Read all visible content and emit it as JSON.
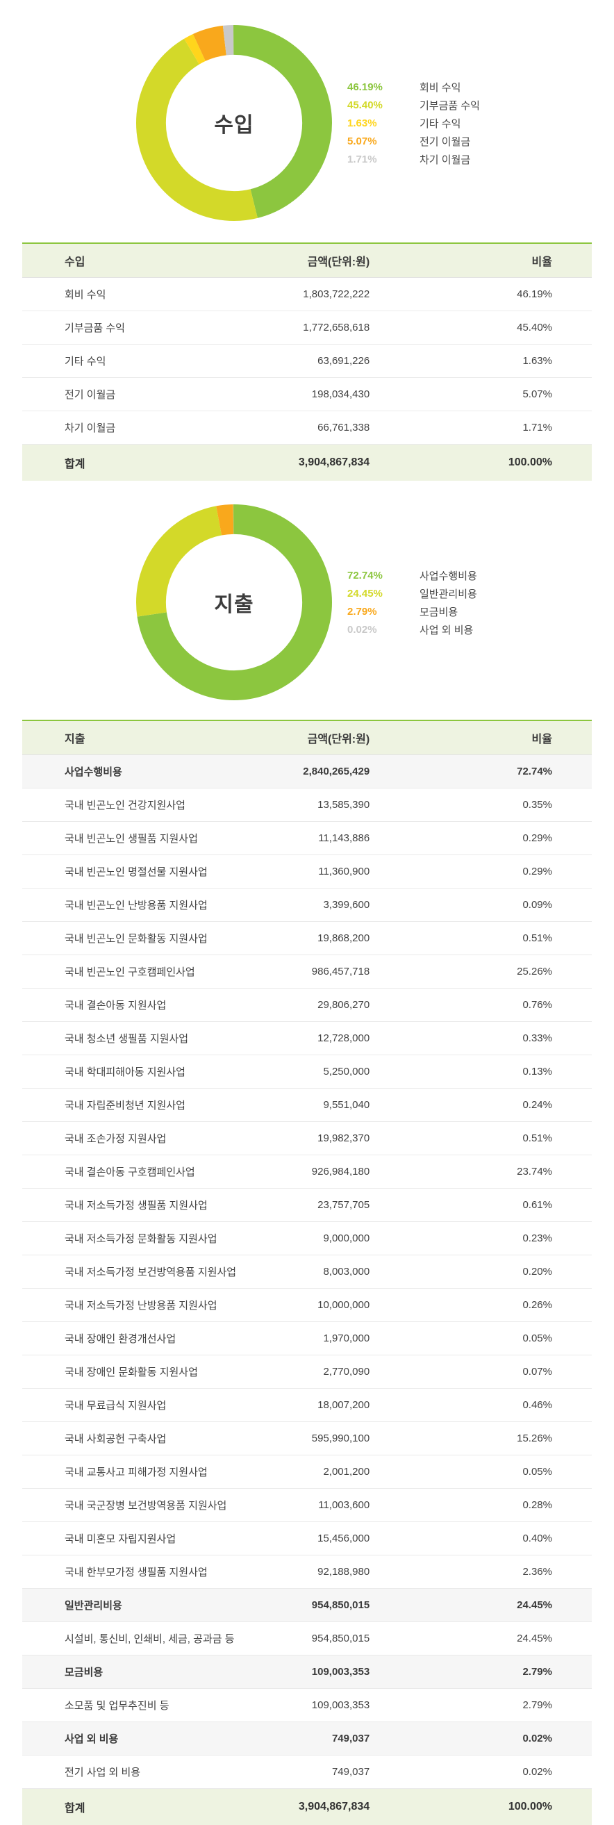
{
  "colors": {
    "green": "#8cc63f",
    "yellow_green": "#d3d929",
    "yellow": "#ffd51c",
    "orange": "#f9a81c",
    "gray": "#c9c9c9",
    "header_bg": "#eef3e1",
    "subtotal_bg": "#f6f6f6",
    "total_bg": "#eef3e1",
    "divider": "#eaeaea",
    "border_top": "#8cc63f"
  },
  "income_chart": {
    "center_label": "수입",
    "legend": [
      {
        "pct": "46.19%",
        "label": "회비 수익",
        "color": "#8cc63f"
      },
      {
        "pct": "45.40%",
        "label": "기부금품 수익",
        "color": "#d3d929"
      },
      {
        "pct": "1.63%",
        "label": "기타 수익",
        "color": "#ffd51c"
      },
      {
        "pct": "5.07%",
        "label": "전기 이월금",
        "color": "#f9a81c"
      },
      {
        "pct": "1.71%",
        "label": "차기 이월금",
        "color": "#c9c9c9"
      }
    ]
  },
  "income_table": {
    "headers": [
      "수입",
      "금액(단위:원)",
      "비율"
    ],
    "rows": [
      {
        "name": "회비 수익",
        "amount": "1,803,722,222",
        "ratio": "46.19%",
        "style": "item"
      },
      {
        "name": "기부금품 수익",
        "amount": "1,772,658,618",
        "ratio": "45.40%",
        "style": "item"
      },
      {
        "name": "기타 수익",
        "amount": "63,691,226",
        "ratio": "1.63%",
        "style": "item"
      },
      {
        "name": "전기 이월금",
        "amount": "198,034,430",
        "ratio": "5.07%",
        "style": "item"
      },
      {
        "name": "차기 이월금",
        "amount": "66,761,338",
        "ratio": "1.71%",
        "style": "item"
      }
    ],
    "total": {
      "name": "합계",
      "amount": "3,904,867,834",
      "ratio": "100.00%"
    }
  },
  "expense_chart": {
    "center_label": "지출",
    "legend": [
      {
        "pct": "72.74%",
        "label": "사업수행비용",
        "color": "#8cc63f"
      },
      {
        "pct": "24.45%",
        "label": "일반관리비용",
        "color": "#d3d929"
      },
      {
        "pct": "2.79%",
        "label": "모금비용",
        "color": "#f9a81c"
      },
      {
        "pct": "0.02%",
        "label": "사업 외 비용",
        "color": "#c9c9c9"
      }
    ]
  },
  "expense_table": {
    "headers": [
      "지출",
      "금액(단위:원)",
      "비율"
    ],
    "rows": [
      {
        "name": "사업수행비용",
        "amount": "2,840,265,429",
        "ratio": "72.74%",
        "style": "subtotal"
      },
      {
        "name": "국내 빈곤노인 건강지원사업",
        "amount": "13,585,390",
        "ratio": "0.35%",
        "style": "item"
      },
      {
        "name": "국내 빈곤노인 생필품 지원사업",
        "amount": "11,143,886",
        "ratio": "0.29%",
        "style": "item"
      },
      {
        "name": "국내 빈곤노인 명절선물 지원사업",
        "amount": "11,360,900",
        "ratio": "0.29%",
        "style": "item"
      },
      {
        "name": "국내 빈곤노인 난방용품 지원사업",
        "amount": "3,399,600",
        "ratio": "0.09%",
        "style": "item"
      },
      {
        "name": "국내 빈곤노인 문화활동 지원사업",
        "amount": "19,868,200",
        "ratio": "0.51%",
        "style": "item"
      },
      {
        "name": "국내 빈곤노인 구호캠페인사업",
        "amount": "986,457,718",
        "ratio": "25.26%",
        "style": "item"
      },
      {
        "name": "국내 결손아동 지원사업",
        "amount": "29,806,270",
        "ratio": "0.76%",
        "style": "item"
      },
      {
        "name": "국내 청소년 생필품 지원사업",
        "amount": "12,728,000",
        "ratio": "0.33%",
        "style": "item"
      },
      {
        "name": "국내 학대피해아동 지원사업",
        "amount": "5,250,000",
        "ratio": "0.13%",
        "style": "item"
      },
      {
        "name": "국내 자립준비청년 지원사업",
        "amount": "9,551,040",
        "ratio": "0.24%",
        "style": "item"
      },
      {
        "name": "국내 조손가정 지원사업",
        "amount": "19,982,370",
        "ratio": "0.51%",
        "style": "item"
      },
      {
        "name": "국내 결손아동 구호캠페인사업",
        "amount": "926,984,180",
        "ratio": "23.74%",
        "style": "item"
      },
      {
        "name": "국내 저소득가정 생필품 지원사업",
        "amount": "23,757,705",
        "ratio": "0.61%",
        "style": "item"
      },
      {
        "name": "국내 저소득가정 문화활동 지원사업",
        "amount": "9,000,000",
        "ratio": "0.23%",
        "style": "item"
      },
      {
        "name": "국내 저소득가정 보건방역용품 지원사업",
        "amount": "8,003,000",
        "ratio": "0.20%",
        "style": "item"
      },
      {
        "name": "국내 저소득가정 난방용품 지원사업",
        "amount": "10,000,000",
        "ratio": "0.26%",
        "style": "item"
      },
      {
        "name": "국내 장애인 환경개선사업",
        "amount": "1,970,000",
        "ratio": "0.05%",
        "style": "item"
      },
      {
        "name": "국내 장애인 문화활동 지원사업",
        "amount": "2,770,090",
        "ratio": "0.07%",
        "style": "item"
      },
      {
        "name": "국내 무료급식 지원사업",
        "amount": "18,007,200",
        "ratio": "0.46%",
        "style": "item"
      },
      {
        "name": "국내 사회공헌 구축사업",
        "amount": "595,990,100",
        "ratio": "15.26%",
        "style": "item"
      },
      {
        "name": "국내 교통사고 피해가정 지원사업",
        "amount": "2,001,200",
        "ratio": "0.05%",
        "style": "item"
      },
      {
        "name": "국내 국군장병 보건방역용품 지원사업",
        "amount": "11,003,600",
        "ratio": "0.28%",
        "style": "item"
      },
      {
        "name": "국내 미혼모 자립지원사업",
        "amount": "15,456,000",
        "ratio": "0.40%",
        "style": "item"
      },
      {
        "name": "국내 한부모가정 생필품 지원사업",
        "amount": "92,188,980",
        "ratio": "2.36%",
        "style": "item"
      },
      {
        "name": "일반관리비용",
        "amount": "954,850,015",
        "ratio": "24.45%",
        "style": "subtotal"
      },
      {
        "name": "시설비, 통신비, 인쇄비, 세금, 공과금 등",
        "amount": "954,850,015",
        "ratio": "24.45%",
        "style": "item"
      },
      {
        "name": "모금비용",
        "amount": "109,003,353",
        "ratio": "2.79%",
        "style": "subtotal"
      },
      {
        "name": "소모품 및 업무추진비 등",
        "amount": "109,003,353",
        "ratio": "2.79%",
        "style": "item"
      },
      {
        "name": "사업 외 비용",
        "amount": "749,037",
        "ratio": "0.02%",
        "style": "subtotal"
      },
      {
        "name": "전기 사업 외 비용",
        "amount": "749,037",
        "ratio": "0.02%",
        "style": "item"
      }
    ],
    "total": {
      "name": "합계",
      "amount": "3,904,867,834",
      "ratio": "100.00%"
    }
  },
  "chart_data": [
    {
      "type": "pie",
      "donut": true,
      "title": "수입",
      "labels": [
        "회비 수익",
        "기부금품 수익",
        "기타 수익",
        "전기 이월금",
        "차기 이월금"
      ],
      "values": [
        46.19,
        45.4,
        1.63,
        5.07,
        1.71
      ],
      "amounts": [
        1803722222,
        1772658618,
        63691226,
        198034430,
        66761338
      ],
      "total_amount": 3904867834,
      "colors": [
        "#8cc63f",
        "#d3d929",
        "#ffd51c",
        "#f9a81c",
        "#c9c9c9"
      ],
      "start_angle": "top",
      "direction": "clockwise",
      "legend_position": "right"
    },
    {
      "type": "pie",
      "donut": true,
      "title": "지출",
      "labels": [
        "사업수행비용",
        "일반관리비용",
        "모금비용",
        "사업 외 비용"
      ],
      "values": [
        72.74,
        24.45,
        2.79,
        0.02
      ],
      "amounts": [
        2840265429,
        954850015,
        109003353,
        749037
      ],
      "total_amount": 3904867834,
      "colors": [
        "#8cc63f",
        "#d3d929",
        "#f9a81c",
        "#c9c9c9"
      ],
      "start_angle": "top",
      "direction": "clockwise",
      "legend_position": "right"
    }
  ]
}
